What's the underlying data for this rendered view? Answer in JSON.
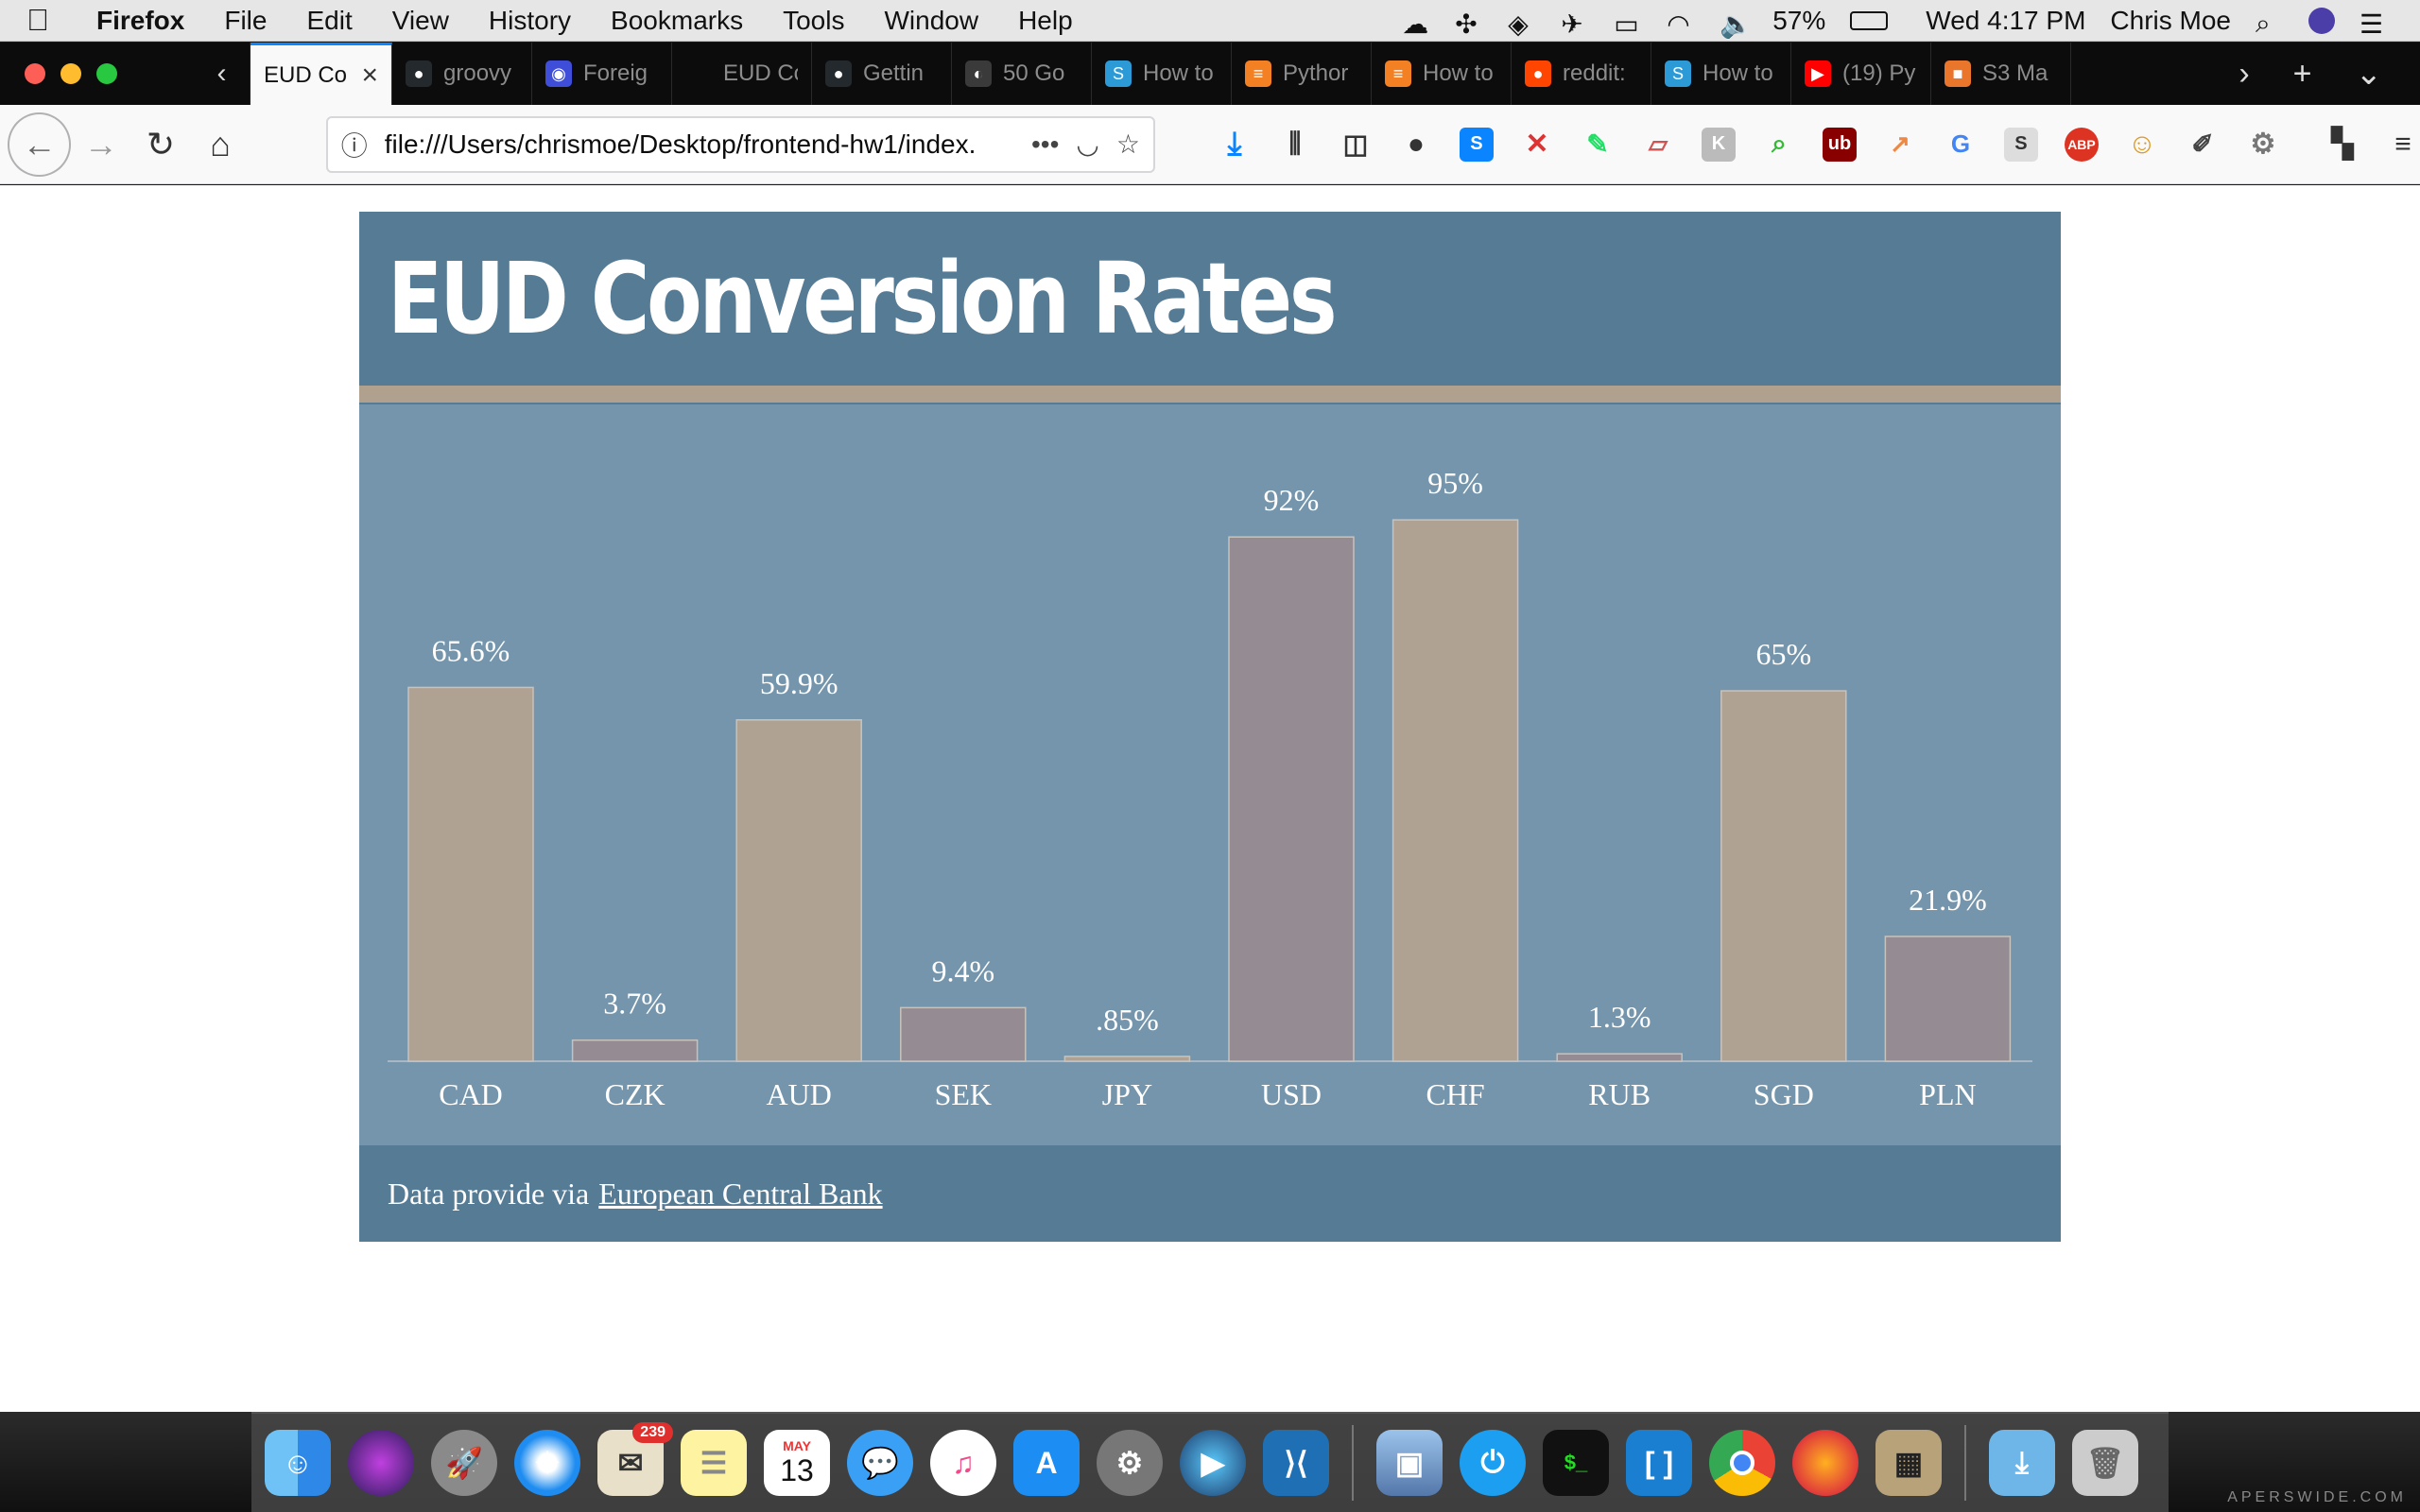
{
  "menubar": {
    "app_name": "Firefox",
    "items": [
      "File",
      "Edit",
      "View",
      "History",
      "Bookmarks",
      "Tools",
      "Window",
      "Help"
    ],
    "battery": "57%",
    "datetime": "Wed 4:17 PM",
    "user": "Chris Moe"
  },
  "tabs": [
    {
      "title": "EUD Co",
      "active": true,
      "fav_color": "#f9f9fa",
      "fav_glyph": ""
    },
    {
      "title": "groovy",
      "fav_color": "#24292e",
      "fav_glyph": "●"
    },
    {
      "title": "Foreig",
      "fav_color": "#3e4ed8",
      "fav_glyph": "◉"
    },
    {
      "title": "EUD Conve",
      "fav_color": "#0c0c0d",
      "fav_glyph": ""
    },
    {
      "title": "Gettin",
      "fav_color": "#24292e",
      "fav_glyph": "●"
    },
    {
      "title": "50 Go",
      "fav_color": "#3a3a3a",
      "fav_glyph": "◐"
    },
    {
      "title": "How to",
      "fav_color": "#2d9ad8",
      "fav_glyph": "S"
    },
    {
      "title": "Pythor",
      "fav_color": "#f48024",
      "fav_glyph": "≡"
    },
    {
      "title": "How to",
      "fav_color": "#f48024",
      "fav_glyph": "≡"
    },
    {
      "title": "reddit:",
      "fav_color": "#ff4500",
      "fav_glyph": "●"
    },
    {
      "title": "How to",
      "fav_color": "#2d9ad8",
      "fav_glyph": "S"
    },
    {
      "title": "(19) Py",
      "fav_color": "#ff0000",
      "fav_glyph": "▶"
    },
    {
      "title": "S3 Ma",
      "fav_color": "#e9762b",
      "fav_glyph": "■"
    }
  ],
  "navbar": {
    "url": "file:///Users/chrismoe/Desktop/frontend-hw1/index.",
    "more": "•••"
  },
  "page": {
    "title": "EUD Conversion Rates",
    "footer_text": "Data provide via",
    "footer_link": "European Central Bank"
  },
  "colors": {
    "header_bg": "#567b95",
    "chart_bg": "#7495ab",
    "divider": "#b0a18e",
    "bar_tan": "#b0a293",
    "bar_gray": "#948b93"
  },
  "chart_data": {
    "type": "bar",
    "categories": [
      "CAD",
      "CZK",
      "AUD",
      "SEK",
      "JPY",
      "USD",
      "CHF",
      "RUB",
      "SGD",
      "PLN"
    ],
    "values": [
      65.6,
      3.7,
      59.9,
      9.4,
      0.85,
      92,
      95,
      1.3,
      65,
      21.9
    ],
    "value_labels": [
      "65.6%",
      "3.7%",
      "59.9%",
      "9.4%",
      ".85%",
      "92%",
      "95%",
      "1.3%",
      "65%",
      "21.9%"
    ],
    "bar_colors": [
      "tan",
      "gray",
      "tan",
      "gray",
      "tan",
      "gray",
      "tan",
      "gray",
      "tan",
      "gray"
    ],
    "ylim": [
      0,
      100
    ],
    "title": "",
    "xlabel": "",
    "ylabel": ""
  },
  "dock": {
    "mail_badge": "239",
    "calendar_month": "MAY",
    "calendar_day": "13"
  },
  "watermark": "APERSWIDE.COM"
}
